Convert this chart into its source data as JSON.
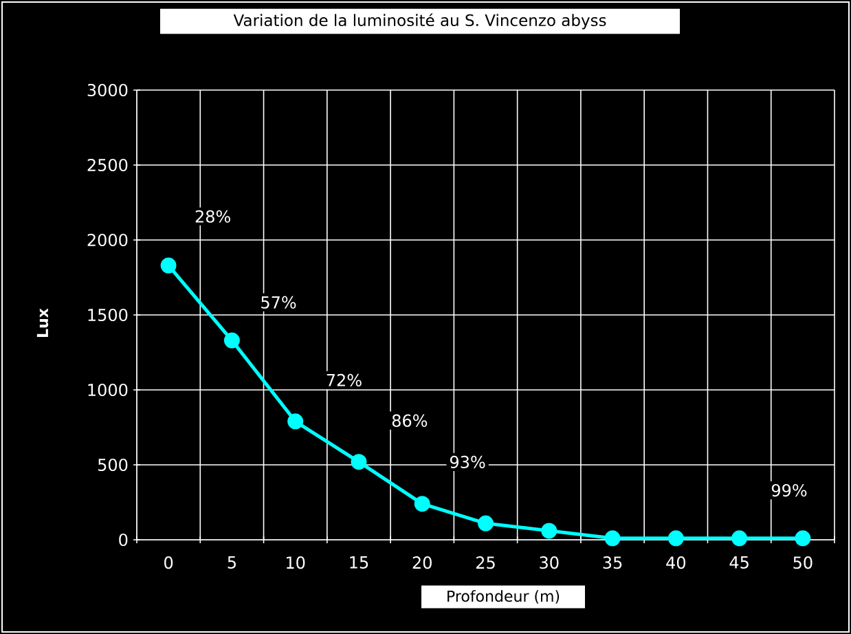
{
  "chart_data": {
    "type": "line",
    "title": "Variation de la luminosité au S. Vincenzo abyss",
    "xlabel": "Profondeur (m)",
    "ylabel": "Lux",
    "categories": [
      "0",
      "5",
      "10",
      "15",
      "20",
      "25",
      "30",
      "35",
      "40",
      "45",
      "50"
    ],
    "series": [
      {
        "color": "#00ffff",
        "values": [
          1830,
          1330,
          790,
          520,
          240,
          110,
          60,
          10,
          10,
          10,
          10
        ]
      }
    ],
    "annotations": [
      "28%",
      "57%",
      "72%",
      "86%",
      "93%",
      "99%"
    ],
    "ylim": [
      0,
      3000
    ],
    "yticks": [
      0,
      500,
      1000,
      1500,
      2000,
      2500,
      3000
    ],
    "grid": true,
    "marker": "circle",
    "line_style": "solid"
  }
}
